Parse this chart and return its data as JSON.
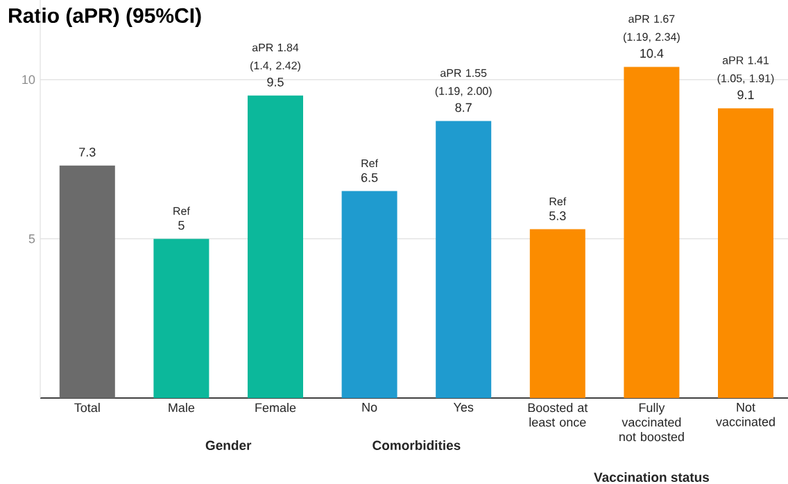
{
  "chart_data": {
    "type": "bar",
    "title": "Ratio (aPR) (95%CI)",
    "categories": [
      "Total",
      "Male",
      "Female",
      "No",
      "Yes",
      "Boosted at least once",
      "Fully vaccinated not boosted",
      "Not vaccinated"
    ],
    "values": [
      7.3,
      5,
      9.5,
      6.5,
      8.7,
      5.3,
      10.4,
      9.1
    ],
    "colors": [
      "#6b6b6b",
      "#0cb89b",
      "#0cb89b",
      "#1f9bcf",
      "#1f9bcf",
      "#fb8c00",
      "#fb8c00",
      "#fb8c00"
    ],
    "ylim": [
      0,
      12.5
    ],
    "yticks": [
      5,
      10
    ],
    "grid": "y",
    "data_labels": true,
    "annotations": [
      {
        "text": "Ref",
        "x": "Male",
        "y": 5
      },
      {
        "text": "aPR 1.84 (1.4, 2.42)",
        "x": "Female",
        "y": 9.5
      },
      {
        "text": "Ref",
        "x": "No",
        "y": 6.5
      },
      {
        "text": "aPR 1.55 (1.19, 2.00)",
        "x": "Yes",
        "y": 8.7
      },
      {
        "text": "Ref",
        "x": "Boosted at least once",
        "y": 5.3
      },
      {
        "text": "aPR 1.67 (1.19, 2.34)",
        "x": "Fully vaccinated not boosted",
        "y": 10.4
      },
      {
        "text": "aPR 1.41 (1.05, 1.91)",
        "x": "Not vaccinated",
        "y": 9.1
      },
      "Gender",
      "Comorbidities",
      "Vaccination status"
    ]
  }
}
